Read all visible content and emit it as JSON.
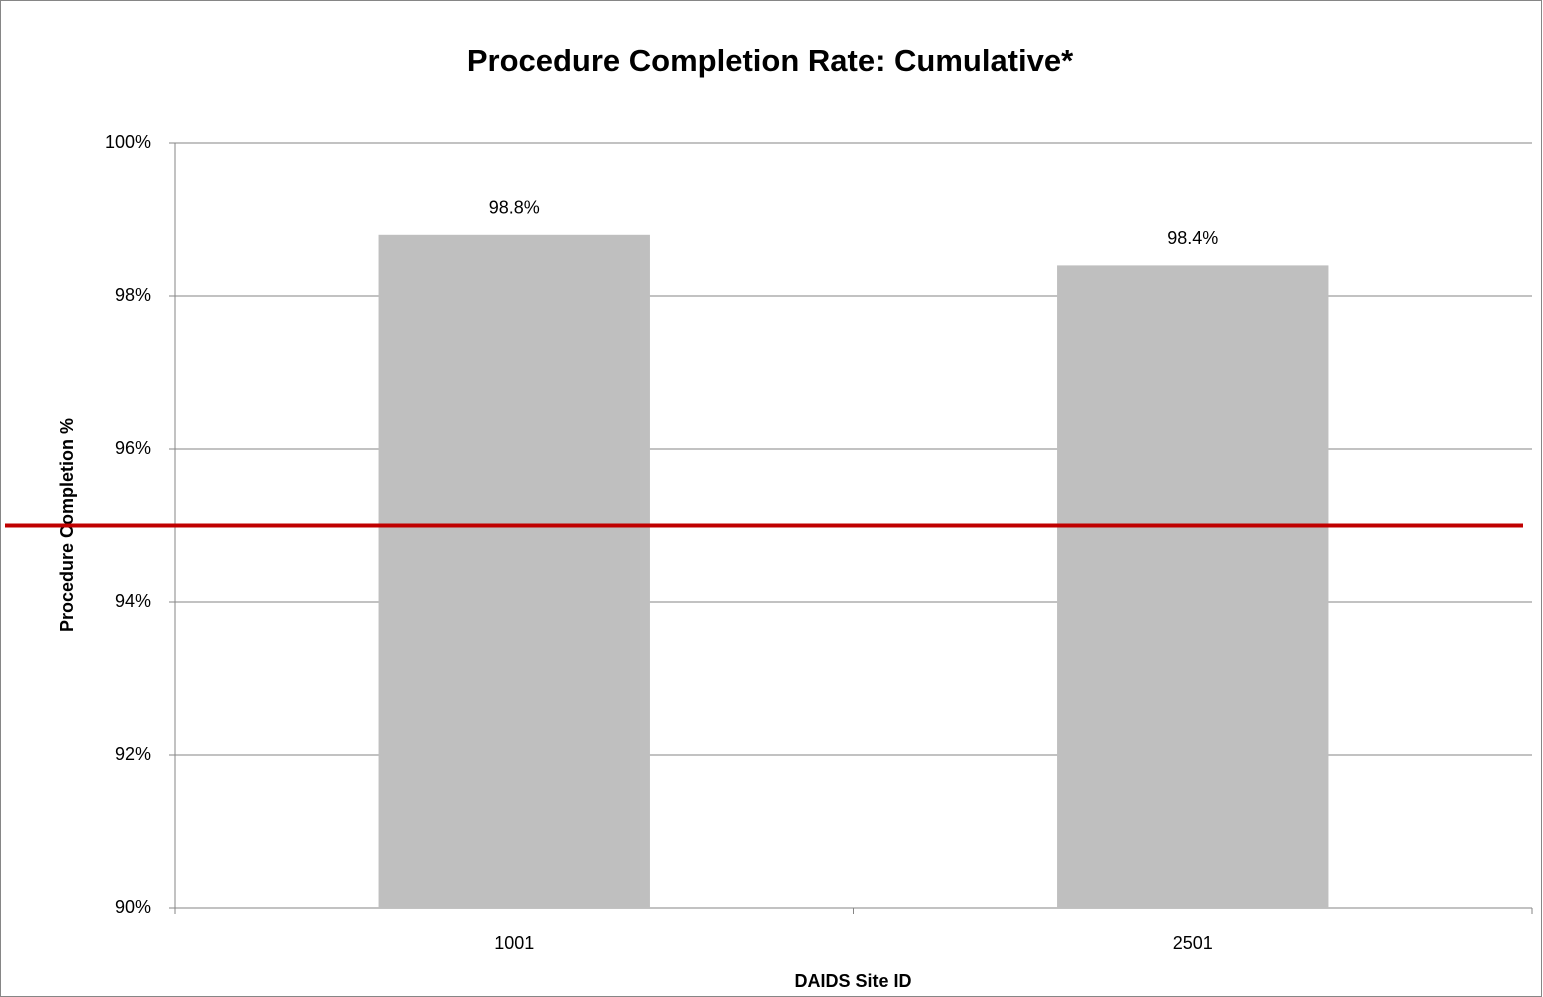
{
  "chart_data": {
    "type": "bar",
    "title": "Procedure Completion Rate: Cumulative*",
    "x_label": "DAIDS Site ID",
    "y_label": "Procedure Completion %",
    "categories": [
      "1001",
      "2501"
    ],
    "values": [
      98.8,
      98.4
    ],
    "value_labels": [
      "98.8%",
      "98.4%"
    ],
    "color": "#bfbfbf",
    "reference_line": {
      "value": 95,
      "color": "#c00000"
    },
    "ylim": [
      90,
      100
    ],
    "yticks": [
      {
        "value": 90,
        "label": "90%"
      },
      {
        "value": 92,
        "label": "92%"
      },
      {
        "value": 94,
        "label": "94%"
      },
      {
        "value": 96,
        "label": "96%"
      },
      {
        "value": 98,
        "label": "98%"
      },
      {
        "value": 100,
        "label": "100%"
      }
    ],
    "grid": true
  }
}
